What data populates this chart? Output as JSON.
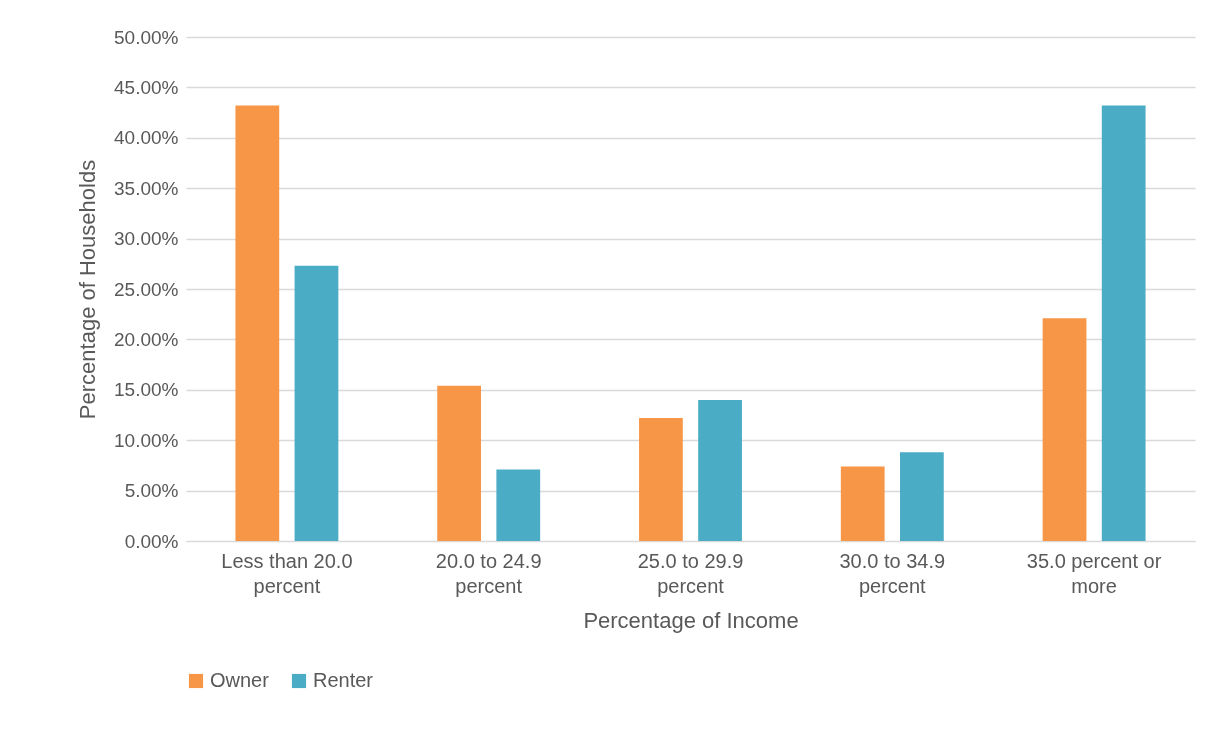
{
  "chart_data": {
    "type": "bar",
    "xlabel": "Percentage of Income",
    "ylabel": "Percentage of Households",
    "categories": [
      "Less than 20.0\npercent",
      "20.0 to 24.9\npercent",
      "25.0 to 29.9\npercent",
      "30.0 to 34.9\npercent",
      "35.0 percent or\nmore"
    ],
    "series": [
      {
        "name": "Owner",
        "color": "#f79646",
        "values": [
          43.2,
          15.4,
          12.2,
          7.4,
          22.1
        ]
      },
      {
        "name": "Renter",
        "color": "#4bacc6",
        "values": [
          27.3,
          7.1,
          14.0,
          8.8,
          43.2
        ]
      }
    ],
    "ylim": [
      0,
      50
    ],
    "yticks": [
      {
        "value": 0,
        "label": "0.00%"
      },
      {
        "value": 5,
        "label": "5.00%"
      },
      {
        "value": 10,
        "label": "10.00%"
      },
      {
        "value": 15,
        "label": "15.00%"
      },
      {
        "value": 20,
        "label": "20.00%"
      },
      {
        "value": 25,
        "label": "25.00%"
      },
      {
        "value": 30,
        "label": "30.00%"
      },
      {
        "value": 35,
        "label": "35.00%"
      },
      {
        "value": 40,
        "label": "40.00%"
      },
      {
        "value": 45,
        "label": "45.00%"
      },
      {
        "value": 50,
        "label": "50.00%"
      }
    ],
    "grid": "y",
    "legend": "bottom"
  }
}
